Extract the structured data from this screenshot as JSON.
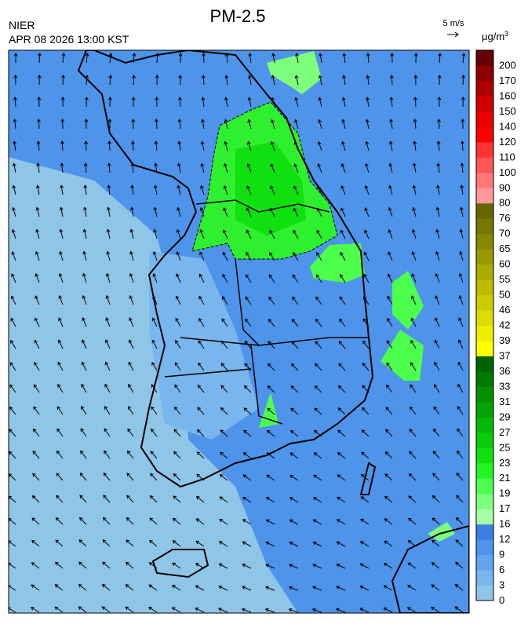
{
  "header": {
    "title": "PM-2.5",
    "agency": "NIER",
    "timestamp": "APR 08 2026 13:00 KST",
    "wind_scale": "5 m/s",
    "unit": "μg/m",
    "unit_power": "3"
  },
  "colorbar": {
    "levels": [
      0,
      3,
      6,
      9,
      12,
      16,
      17,
      19,
      21,
      23,
      25,
      27,
      29,
      31,
      33,
      36,
      37,
      39,
      42,
      46,
      50,
      55,
      60,
      65,
      70,
      76,
      80,
      90,
      100,
      110,
      120,
      140,
      150,
      160,
      170,
      200
    ],
    "colors": [
      "#8fc6e8",
      "#7ab6ee",
      "#62a4ee",
      "#4e94ea",
      "#3b7fe2",
      "#a6ffa6",
      "#7dff7d",
      "#4cff4c",
      "#22f522",
      "#10e010",
      "#0acc0a",
      "#06b806",
      "#04a404",
      "#039003",
      "#027a02",
      "#006400",
      "#ffff00",
      "#eeee00",
      "#dcdc00",
      "#cccc00",
      "#bbbb00",
      "#aaaa00",
      "#999900",
      "#888800",
      "#777700",
      "#666600",
      "#ff9999",
      "#ff7777",
      "#ff5555",
      "#ff3333",
      "#ff0000",
      "#ee0000",
      "#d00000",
      "#b00000",
      "#900000",
      "#660000"
    ]
  }
}
